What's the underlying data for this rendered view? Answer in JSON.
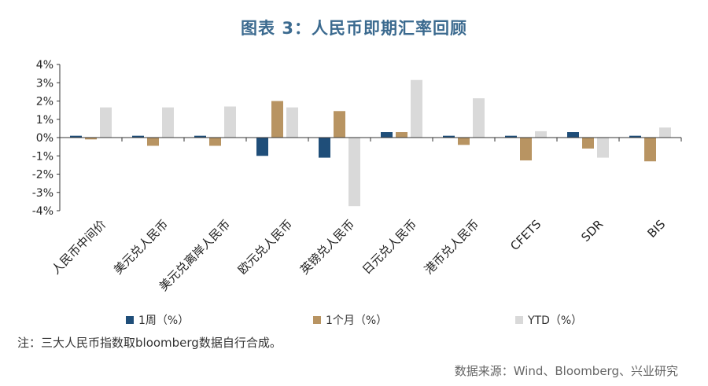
{
  "title": "图表 3：人民币即期汇率回顾",
  "note": "注：三大人民币指数取bloomberg数据自行合成。",
  "source": "数据来源：Wind、Bloomberg、兴业研究",
  "colors": {
    "s1": "#1f4e79",
    "s2": "#b89462",
    "s3": "#d9d9d9",
    "axis": "#333333"
  },
  "chart_data": {
    "type": "bar",
    "categories": [
      "人民币中间价",
      "美元兑人民币",
      "美元兑离岸人民币",
      "欧元兑人民币",
      "英镑兑人民币",
      "日元兑人民币",
      "港币兑人民币",
      "CFETS",
      "SDR",
      "BIS"
    ],
    "series": [
      {
        "name": "1周（%）",
        "values": [
          0.1,
          0.1,
          0.1,
          -1.0,
          -1.1,
          0.3,
          0.1,
          0.1,
          0.3,
          0.1
        ]
      },
      {
        "name": "1个月（%）",
        "values": [
          -0.1,
          -0.45,
          -0.45,
          2.0,
          1.45,
          0.3,
          -0.4,
          -1.25,
          -0.6,
          -1.3
        ]
      },
      {
        "name": "YTD（%）",
        "values": [
          1.65,
          1.65,
          1.7,
          1.65,
          -3.75,
          3.15,
          2.15,
          0.35,
          -1.1,
          0.55
        ]
      }
    ],
    "yticks": [
      "4%",
      "3%",
      "2%",
      "1%",
      "0%",
      "-1%",
      "-2%",
      "-3%",
      "-4%"
    ],
    "ylim": [
      -4,
      4
    ],
    "xlabel": "",
    "ylabel": "",
    "grid": false,
    "legend": "bottom"
  }
}
